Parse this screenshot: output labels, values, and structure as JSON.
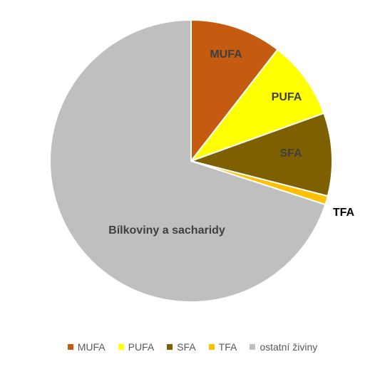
{
  "chart_data": {
    "type": "pie",
    "title": "",
    "slices": [
      {
        "key": "mufa",
        "legend": "MUFA",
        "label": "MUFA",
        "value": 10.5,
        "color": "#C55A11",
        "label_color": "#404040"
      },
      {
        "key": "pufa",
        "legend": "PUFA",
        "label": "PUFA",
        "value": 9.0,
        "color": "#FFFF00",
        "label_color": "#404040"
      },
      {
        "key": "sfa",
        "legend": "SFA",
        "label": "SFA",
        "value": 9.5,
        "color": "#7F6000",
        "label_color": "#404040"
      },
      {
        "key": "tfa",
        "legend": "TFA",
        "label": "TFA",
        "value": 1.0,
        "color": "#FFC000",
        "label_color": "#000000"
      },
      {
        "key": "ostatni",
        "legend": "ostatní živiny",
        "label": "Bílkoviny a sacharidy",
        "value": 70.0,
        "color": "#BFBFBF",
        "label_color": "#404040"
      }
    ],
    "legend_position": "bottom"
  }
}
